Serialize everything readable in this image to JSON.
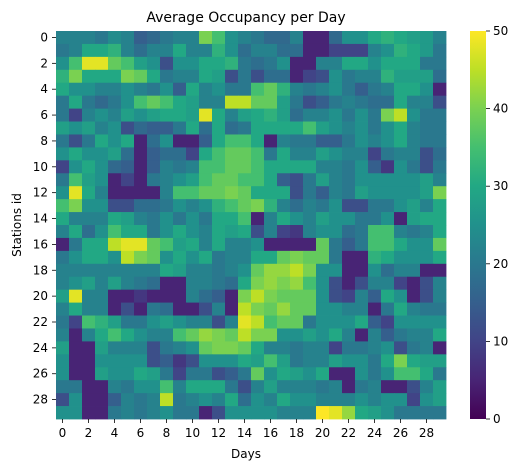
{
  "chart_data": {
    "type": "heatmap",
    "title": "Average Occupancy per Day",
    "xlabel": "Days",
    "ylabel": "Stations id",
    "x_ticks": [
      "0",
      "2",
      "4",
      "6",
      "8",
      "10",
      "12",
      "14",
      "16",
      "18",
      "20",
      "22",
      "24",
      "26",
      "28"
    ],
    "y_ticks": [
      "0",
      "2",
      "4",
      "6",
      "8",
      "10",
      "12",
      "14",
      "16",
      "18",
      "20",
      "22",
      "24",
      "26",
      "28"
    ],
    "colorbar": {
      "min": 0,
      "max": 50,
      "ticks": [
        "0",
        "10",
        "20",
        "30",
        "40",
        "50"
      ],
      "colormap": "viridis"
    },
    "x_count": 30,
    "y_count": 30,
    "values": [
      [
        22,
        22,
        22,
        20,
        24,
        22,
        15,
        17,
        20,
        22,
        22,
        40,
        35,
        25,
        22,
        20,
        17,
        17,
        22,
        5,
        5,
        17,
        25,
        25,
        30,
        32,
        30,
        28,
        27,
        22
      ],
      [
        20,
        22,
        30,
        30,
        32,
        22,
        18,
        22,
        22,
        30,
        22,
        22,
        32,
        25,
        18,
        22,
        22,
        18,
        18,
        5,
        5,
        10,
        10,
        10,
        22,
        25,
        32,
        30,
        27,
        20
      ],
      [
        25,
        35,
        48,
        48,
        38,
        35,
        28,
        25,
        12,
        25,
        25,
        30,
        30,
        32,
        20,
        18,
        20,
        25,
        5,
        5,
        22,
        22,
        30,
        30,
        25,
        30,
        30,
        30,
        20,
        20
      ],
      [
        32,
        40,
        30,
        30,
        30,
        40,
        38,
        30,
        20,
        22,
        22,
        30,
        28,
        12,
        20,
        12,
        18,
        18,
        5,
        10,
        12,
        25,
        20,
        22,
        22,
        32,
        28,
        28,
        28,
        18
      ],
      [
        30,
        25,
        25,
        22,
        22,
        25,
        22,
        20,
        25,
        15,
        30,
        22,
        25,
        20,
        20,
        35,
        38,
        32,
        22,
        20,
        22,
        25,
        20,
        15,
        20,
        22,
        30,
        30,
        25,
        5
      ],
      [
        20,
        30,
        20,
        17,
        20,
        25,
        35,
        38,
        35,
        30,
        28,
        22,
        22,
        45,
        45,
        38,
        38,
        28,
        20,
        12,
        15,
        20,
        22,
        20,
        18,
        18,
        30,
        22,
        22,
        12
      ],
      [
        20,
        10,
        22,
        25,
        22,
        28,
        25,
        28,
        30,
        30,
        28,
        48,
        30,
        22,
        28,
        30,
        32,
        28,
        18,
        22,
        22,
        25,
        20,
        25,
        20,
        40,
        45,
        25,
        20,
        20
      ],
      [
        28,
        25,
        28,
        22,
        25,
        12,
        17,
        15,
        15,
        20,
        30,
        18,
        30,
        18,
        20,
        30,
        30,
        30,
        30,
        35,
        28,
        25,
        22,
        25,
        20,
        25,
        30,
        22,
        20,
        20
      ],
      [
        20,
        12,
        20,
        30,
        25,
        30,
        5,
        18,
        25,
        5,
        5,
        15,
        30,
        35,
        35,
        30,
        5,
        22,
        20,
        20,
        15,
        15,
        20,
        25,
        22,
        25,
        30,
        22,
        20,
        20
      ],
      [
        25,
        30,
        25,
        25,
        28,
        18,
        5,
        15,
        18,
        18,
        10,
        30,
        35,
        38,
        38,
        35,
        20,
        30,
        22,
        22,
        28,
        25,
        22,
        22,
        10,
        20,
        22,
        22,
        12,
        18
      ],
      [
        10,
        25,
        30,
        25,
        17,
        15,
        5,
        15,
        22,
        20,
        22,
        35,
        35,
        38,
        38,
        35,
        30,
        30,
        30,
        30,
        22,
        22,
        20,
        25,
        15,
        8,
        25,
        20,
        12,
        20
      ],
      [
        20,
        35,
        28,
        25,
        5,
        10,
        5,
        20,
        22,
        25,
        28,
        35,
        38,
        38,
        35,
        35,
        30,
        15,
        12,
        20,
        28,
        22,
        20,
        25,
        25,
        25,
        25,
        25,
        28,
        22
      ],
      [
        25,
        48,
        30,
        22,
        5,
        5,
        5,
        5,
        22,
        35,
        35,
        38,
        38,
        40,
        38,
        30,
        30,
        30,
        12,
        20,
        15,
        22,
        20,
        28,
        25,
        25,
        25,
        25,
        28,
        40
      ],
      [
        35,
        40,
        25,
        25,
        12,
        12,
        18,
        18,
        20,
        25,
        22,
        25,
        32,
        35,
        38,
        40,
        32,
        22,
        18,
        22,
        20,
        25,
        12,
        12,
        20,
        20,
        25,
        28,
        22,
        30
      ],
      [
        30,
        22,
        22,
        22,
        30,
        28,
        22,
        20,
        25,
        20,
        25,
        20,
        30,
        30,
        35,
        5,
        22,
        30,
        25,
        22,
        28,
        25,
        25,
        20,
        20,
        25,
        5,
        28,
        30,
        30
      ],
      [
        22,
        30,
        18,
        25,
        35,
        30,
        30,
        20,
        25,
        30,
        25,
        22,
        30,
        28,
        30,
        12,
        22,
        10,
        8,
        22,
        25,
        25,
        18,
        20,
        35,
        35,
        22,
        20,
        22,
        30
      ],
      [
        5,
        20,
        30,
        30,
        45,
        48,
        48,
        38,
        35,
        28,
        30,
        22,
        30,
        22,
        22,
        25,
        5,
        5,
        5,
        5,
        38,
        20,
        15,
        20,
        35,
        35,
        30,
        25,
        25,
        38
      ],
      [
        20,
        25,
        30,
        30,
        25,
        45,
        40,
        38,
        25,
        30,
        25,
        30,
        20,
        22,
        22,
        30,
        30,
        38,
        40,
        38,
        38,
        20,
        5,
        5,
        32,
        30,
        25,
        25,
        25,
        30
      ],
      [
        22,
        22,
        22,
        22,
        22,
        22,
        22,
        22,
        30,
        28,
        22,
        22,
        20,
        22,
        25,
        38,
        42,
        42,
        45,
        40,
        25,
        25,
        5,
        5,
        25,
        18,
        22,
        22,
        5,
        5
      ],
      [
        22,
        25,
        28,
        22,
        28,
        22,
        20,
        18,
        5,
        5,
        22,
        22,
        20,
        18,
        30,
        40,
        42,
        40,
        42,
        35,
        25,
        12,
        5,
        12,
        22,
        22,
        10,
        5,
        12,
        22
      ],
      [
        28,
        48,
        22,
        22,
        5,
        5,
        8,
        5,
        5,
        5,
        22,
        18,
        15,
        5,
        40,
        45,
        40,
        38,
        38,
        38,
        25,
        12,
        10,
        22,
        15,
        30,
        25,
        5,
        12,
        22
      ],
      [
        22,
        30,
        22,
        22,
        5,
        12,
        5,
        20,
        18,
        5,
        5,
        12,
        22,
        5,
        45,
        40,
        38,
        42,
        38,
        38,
        25,
        25,
        22,
        22,
        5,
        20,
        30,
        22,
        20,
        20
      ],
      [
        20,
        10,
        35,
        32,
        28,
        20,
        20,
        25,
        28,
        25,
        22,
        22,
        12,
        22,
        48,
        45,
        35,
        38,
        38,
        20,
        25,
        25,
        25,
        30,
        15,
        10,
        25,
        25,
        25,
        25
      ],
      [
        22,
        5,
        22,
        30,
        35,
        30,
        25,
        22,
        22,
        35,
        38,
        42,
        40,
        38,
        45,
        40,
        40,
        25,
        25,
        28,
        25,
        30,
        22,
        5,
        22,
        15,
        20,
        22,
        22,
        30
      ],
      [
        28,
        5,
        5,
        28,
        22,
        22,
        22,
        12,
        20,
        22,
        25,
        38,
        40,
        40,
        38,
        30,
        22,
        22,
        20,
        22,
        22,
        10,
        20,
        20,
        22,
        25,
        12,
        20,
        22,
        5
      ],
      [
        25,
        5,
        5,
        25,
        25,
        25,
        25,
        12,
        15,
        8,
        12,
        25,
        25,
        25,
        30,
        28,
        35,
        28,
        20,
        22,
        22,
        28,
        25,
        25,
        20,
        30,
        40,
        30,
        28,
        28
      ],
      [
        25,
        5,
        5,
        28,
        25,
        25,
        30,
        28,
        20,
        10,
        20,
        20,
        12,
        15,
        20,
        38,
        25,
        30,
        28,
        25,
        30,
        5,
        5,
        25,
        20,
        25,
        35,
        35,
        30,
        20
      ],
      [
        20,
        20,
        5,
        5,
        22,
        20,
        25,
        25,
        35,
        22,
        30,
        30,
        30,
        20,
        12,
        22,
        28,
        22,
        22,
        22,
        20,
        22,
        5,
        20,
        22,
        5,
        5,
        12,
        22,
        28
      ],
      [
        12,
        25,
        5,
        5,
        15,
        22,
        20,
        22,
        45,
        20,
        22,
        25,
        22,
        30,
        18,
        25,
        22,
        30,
        25,
        25,
        22,
        22,
        22,
        25,
        22,
        25,
        25,
        10,
        25,
        28
      ],
      [
        25,
        25,
        5,
        5,
        20,
        22,
        20,
        22,
        25,
        20,
        20,
        5,
        12,
        25,
        25,
        25,
        25,
        22,
        22,
        22,
        50,
        48,
        42,
        30,
        28,
        25,
        20,
        20,
        20,
        20
      ]
    ]
  }
}
